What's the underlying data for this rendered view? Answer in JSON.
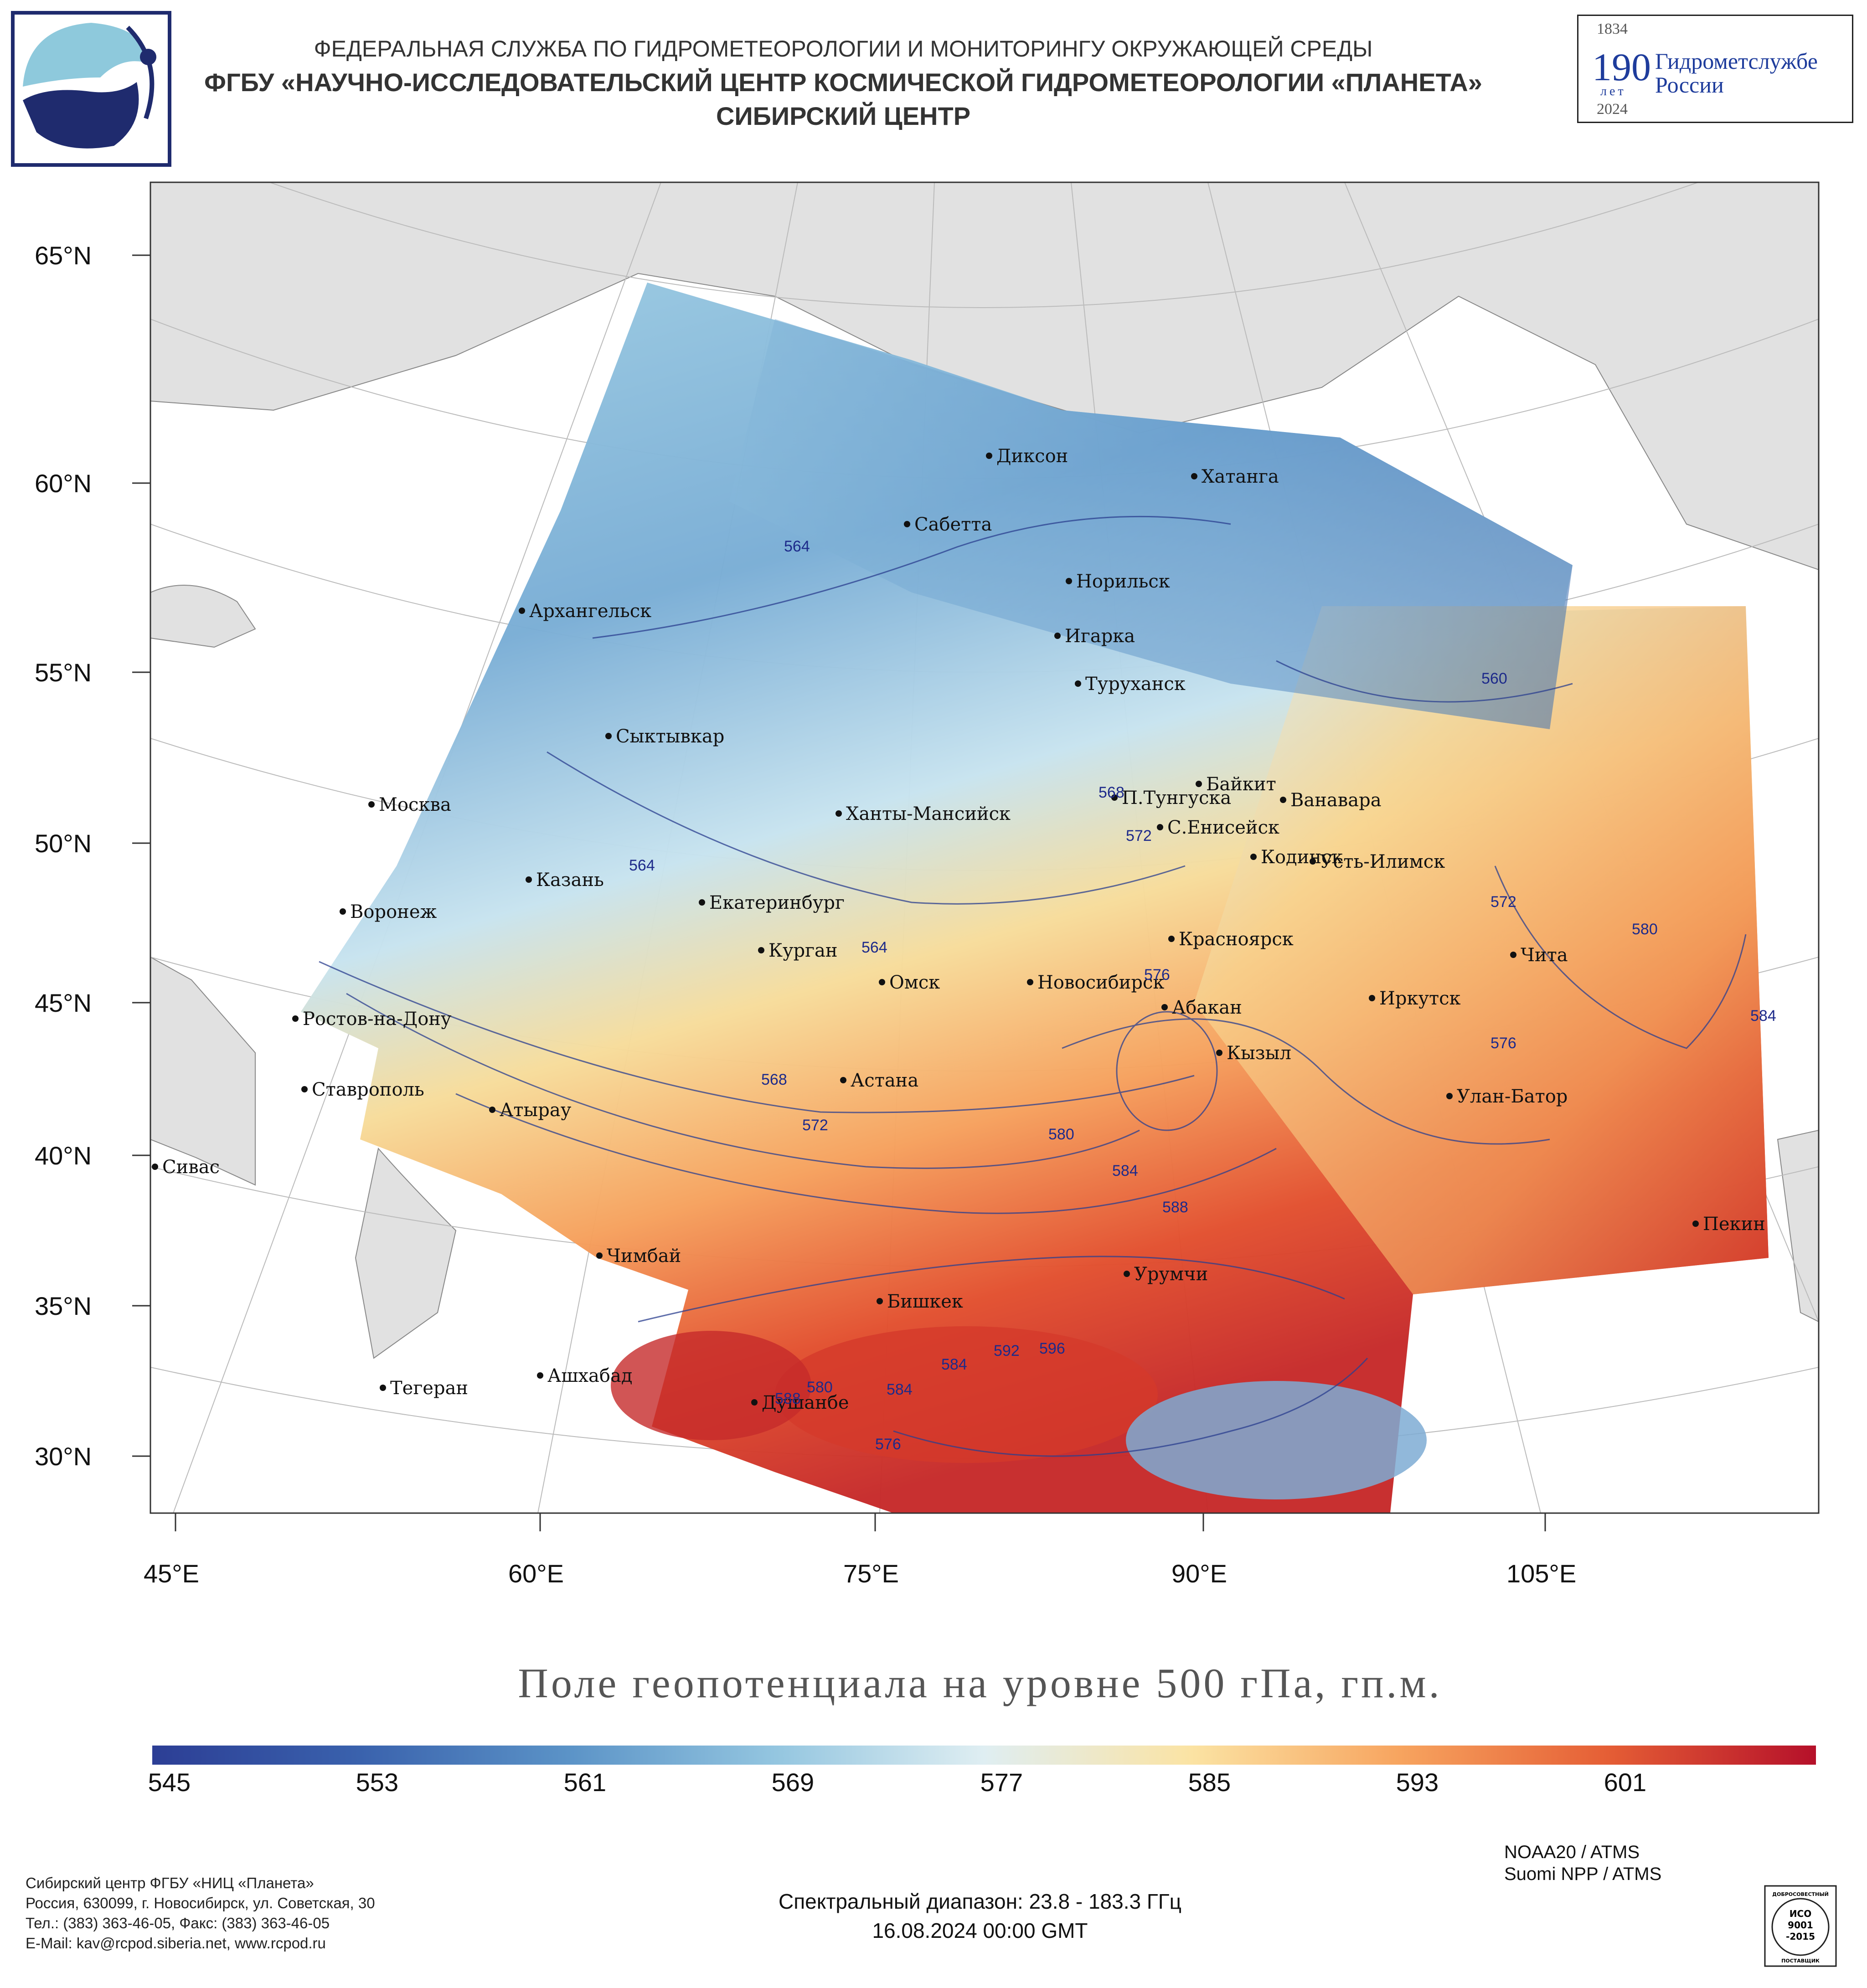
{
  "header": {
    "line1": "ФЕДЕРАЛЬНАЯ СЛУЖБА ПО ГИДРОМЕТЕОРОЛОГИИ И МОНИТОРИНГУ ОКРУЖАЮЩЕЙ СРЕДЫ",
    "line2": "ФГБУ «НАУЧНО-ИССЛЕДОВАТЕЛЬСКИЙ ЦЕНТР КОСМИЧЕСКОЙ ГИДРОМЕТЕОРОЛОГИИ «ПЛАНЕТА»",
    "line3": "СИБИРСКИЙ ЦЕНТР"
  },
  "anniversary_logo": {
    "year_start": "1834",
    "number": "190",
    "unit": "лет",
    "year_end": "2024",
    "name_line1": "Гидрометслужбе",
    "name_line2": "России"
  },
  "map": {
    "title": "Поле геопотенциала на уровне 500 гПа, гп.м.",
    "lat_labels": [
      "65°N",
      "60°N",
      "55°N",
      "50°N",
      "45°N",
      "40°N",
      "35°N",
      "30°N"
    ],
    "lon_labels": [
      "45°E",
      "60°E",
      "75°E",
      "90°E",
      "105°E"
    ],
    "cities": [
      {
        "name": "Диксон"
      },
      {
        "name": "Хатанга"
      },
      {
        "name": "Сабетта"
      },
      {
        "name": "Норильск"
      },
      {
        "name": "Архангельск"
      },
      {
        "name": "Игарка"
      },
      {
        "name": "Туруханск"
      },
      {
        "name": "Сыктывкар"
      },
      {
        "name": "Байкит"
      },
      {
        "name": "П.Тунгуска"
      },
      {
        "name": "Ванавара"
      },
      {
        "name": "Москва"
      },
      {
        "name": "Ханты-Мансийск"
      },
      {
        "name": "С.Енисейск"
      },
      {
        "name": "Кодинск"
      },
      {
        "name": "Усть-Илимск"
      },
      {
        "name": "Казань"
      },
      {
        "name": "Екатеринбург"
      },
      {
        "name": "Воронеж"
      },
      {
        "name": "Красноярск"
      },
      {
        "name": "Курган"
      },
      {
        "name": "Чита"
      },
      {
        "name": "Омск"
      },
      {
        "name": "Новосибирск"
      },
      {
        "name": "Иркутск"
      },
      {
        "name": "Абакан"
      },
      {
        "name": "Ростов-на-Дону"
      },
      {
        "name": "Кызыл"
      },
      {
        "name": "Ставрополь"
      },
      {
        "name": "Астана"
      },
      {
        "name": "Улан-Батор"
      },
      {
        "name": "Атырау"
      },
      {
        "name": "Сивас"
      },
      {
        "name": "Пекин"
      },
      {
        "name": "Чимбай"
      },
      {
        "name": "Урумчи"
      },
      {
        "name": "Бишкек"
      },
      {
        "name": "Ашхабад"
      },
      {
        "name": "Тегеран"
      },
      {
        "name": "Душанбе"
      }
    ],
    "contour_labels": [
      "564",
      "560",
      "568",
      "572",
      "564",
      "564",
      "576",
      "572",
      "580",
      "584",
      "576",
      "568",
      "572",
      "580",
      "584",
      "588",
      "580",
      "584",
      "592",
      "596",
      "584",
      "576",
      "588"
    ],
    "colorbar": {
      "ticks": [
        "545",
        "553",
        "561",
        "569",
        "577",
        "585",
        "593",
        "601"
      ],
      "min": 545,
      "max": 609,
      "colors": [
        "#2c3e95",
        "#3a62ad",
        "#5b93c7",
        "#94c6e0",
        "#dfeef2",
        "#fbe3a3",
        "#f7a45f",
        "#e55e35",
        "#b5102a"
      ]
    }
  },
  "footer": {
    "org_lines": [
      "Сибирский центр ФГБУ «НИЦ «Планета»",
      "Россия, 630099, г. Новосибирск, ул. Советская, 30",
      "Тел.: (383) 363-46-05, Факс: (383) 363-46-05",
      "E-Mail: kav@rcpod.siberia.net, www.rcpod.ru"
    ],
    "satellites": [
      "NOAA20 / ATMS",
      "Suomi NPP / ATMS"
    ],
    "spectral": "Спектральный диапазон: 23.8 - 183.3 ГГц",
    "datetime": "16.08.2024 00:00 GMT",
    "iso_badge": {
      "top": "ДОБРОСОВЕСТНЫЙ",
      "line1": "ИСО",
      "line2": "9001",
      "line3": "-2015",
      "bottom": "ПОСТАВЩИК"
    }
  }
}
